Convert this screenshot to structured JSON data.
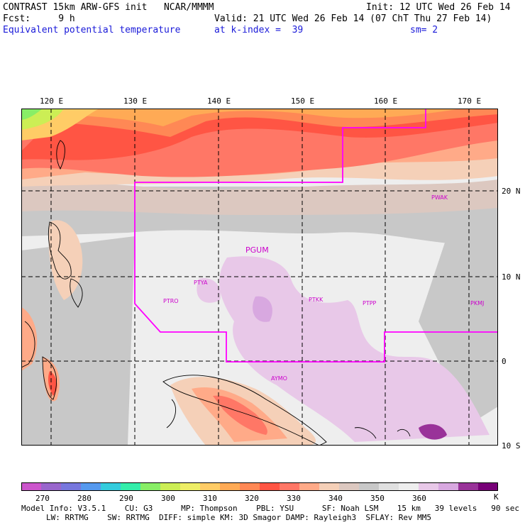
{
  "header": {
    "model_name": "CONTRAST 15km ARW-GFS init",
    "org": "NCAR/MMMM",
    "init": "Init: 12 UTC Wed 26 Feb 14",
    "fcst_label": "Fcst:",
    "fcst_value": "9 h",
    "valid": "Valid: 21 UTC Wed 26 Feb 14 (07 ChT Thu 27 Feb 14)",
    "field": "Equivalent potential temperature",
    "level": "at k-index =  39",
    "smoothing": "sm= 2"
  },
  "map": {
    "lon_labels": [
      "120 E",
      "130 E",
      "140 E",
      "150 E",
      "160 E",
      "170 E"
    ],
    "lat_labels": [
      "20 N",
      "10 N",
      "0",
      "10 S"
    ],
    "stations": [
      "PWAK",
      "PGUM",
      "PTYA",
      "PTRO",
      "PTKK",
      "PTPP",
      "PKMJ",
      "AYMO"
    ]
  },
  "colorbar": {
    "ticks": [
      "270",
      "280",
      "290",
      "300",
      "310",
      "320",
      "330",
      "340",
      "350",
      "360",
      "K"
    ],
    "colors": [
      "#cc55cc",
      "#9966cc",
      "#7777dd",
      "#5599ee",
      "#33ccdd",
      "#33eeaa",
      "#88ee66",
      "#ccee55",
      "#eeee66",
      "#ffcc66",
      "#ffaa55",
      "#ff8855",
      "#ff5544",
      "#ff7766",
      "#ffaa88",
      "#f5d0b8",
      "#dcc8c0",
      "#c8c8c8",
      "#e0e0e0",
      "#eeeeee",
      "#e8c8e8",
      "#d8a8e0",
      "#993399",
      "#770077"
    ]
  },
  "footer": {
    "line1": "Model Info: V3.5.1    CU: G3      MP: Thompson    PBL: YSU      SF: Noah LSM    15 km   39 levels   90 sec",
    "line2": "LW: RRTMG    SW: RRTMG  DIFF: simple KM: 3D Smagor DAMP: Rayleigh3  SFLAY: Rev MM5"
  }
}
